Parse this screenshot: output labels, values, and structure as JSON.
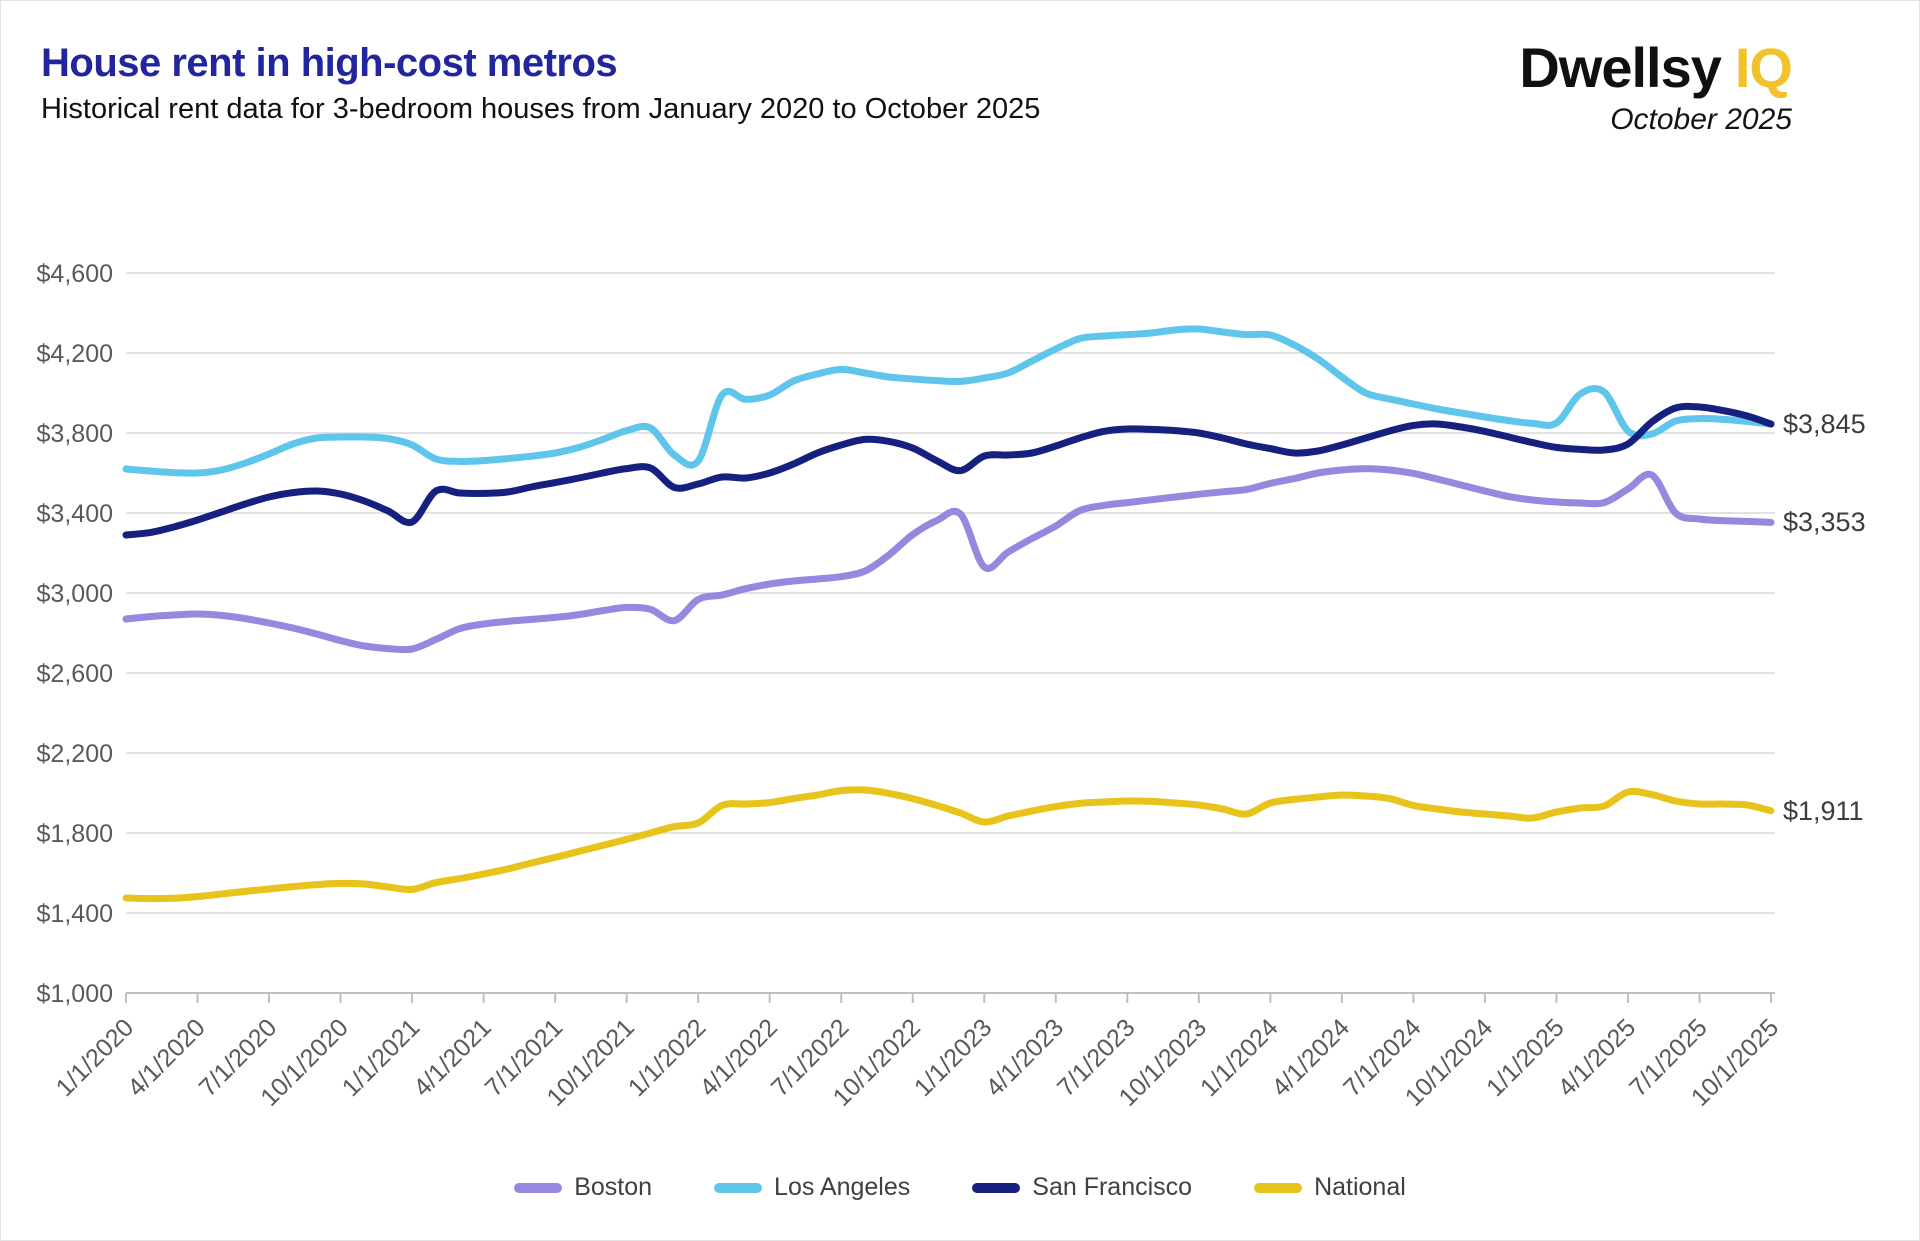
{
  "header": {
    "title": "House rent in high-cost metros",
    "subtitle": "Historical rent data for 3-bedroom houses from January 2020 to October 2025",
    "brand_name": "Dwellsy",
    "brand_suffix": "IQ",
    "date_label": "October 2025"
  },
  "chart_data": {
    "type": "line",
    "title": "House rent in high-cost metros",
    "x_start": "1/1/2020",
    "x_step": "monthly",
    "x_tick_every": 3,
    "categories": [
      "1/1/2020",
      "4/1/2020",
      "7/1/2020",
      "10/1/2020",
      "1/1/2021",
      "4/1/2021",
      "7/1/2021",
      "10/1/2021",
      "1/1/2022",
      "4/1/2022",
      "7/1/2022",
      "10/1/2022",
      "1/1/2023",
      "4/1/2023",
      "7/1/2023",
      "10/1/2023",
      "1/1/2024",
      "4/1/2024",
      "7/1/2024",
      "10/1/2024",
      "1/1/2025",
      "4/1/2025",
      "7/1/2025",
      "10/1/2025"
    ],
    "ylim": [
      1000,
      4600
    ],
    "yticks": [
      {
        "label": "$4,600",
        "value": 4600
      },
      {
        "label": "$4,200",
        "value": 4200
      },
      {
        "label": "$3,800",
        "value": 3800
      },
      {
        "label": "$3,400",
        "value": 3400
      },
      {
        "label": "$3,000",
        "value": 3000
      },
      {
        "label": "$2,600",
        "value": 2600
      },
      {
        "label": "$2,200",
        "value": 2200
      },
      {
        "label": "$1,800",
        "value": 1800
      },
      {
        "label": "$1,400",
        "value": 1400
      },
      {
        "label": "$1,000",
        "value": 1000
      }
    ],
    "grid": true,
    "legend_position": "bottom",
    "series": [
      {
        "name": "National",
        "color": "#E7C31C",
        "values": [
          1475,
          1472,
          1474,
          1482,
          1495,
          1508,
          1520,
          1532,
          1542,
          1548,
          1545,
          1530,
          1518,
          1552,
          1572,
          1595,
          1620,
          1650,
          1678,
          1708,
          1738,
          1768,
          1800,
          1832,
          1850,
          1938,
          1945,
          1952,
          1972,
          1990,
          2012,
          2015,
          1998,
          1972,
          1938,
          1900,
          1855,
          1885,
          1910,
          1932,
          1948,
          1955,
          1960,
          1958,
          1950,
          1940,
          1920,
          1895,
          1950,
          1968,
          1980,
          1990,
          1985,
          1972,
          1938,
          1920,
          1905,
          1895,
          1885,
          1875,
          1905,
          1925,
          1935,
          2005,
          1992,
          1960,
          1945,
          1945,
          1940,
          1911
        ]
      },
      {
        "name": "Boston",
        "color": "#9688DF",
        "values": [
          2870,
          2882,
          2890,
          2895,
          2888,
          2872,
          2850,
          2825,
          2795,
          2762,
          2735,
          2722,
          2720,
          2768,
          2822,
          2845,
          2858,
          2868,
          2878,
          2892,
          2912,
          2928,
          2918,
          2862,
          2968,
          2990,
          3022,
          3045,
          3060,
          3070,
          3082,
          3110,
          3190,
          3292,
          3362,
          3395,
          3130,
          3205,
          3272,
          3335,
          3412,
          3438,
          3452,
          3466,
          3480,
          3494,
          3506,
          3518,
          3548,
          3572,
          3600,
          3615,
          3622,
          3615,
          3598,
          3570,
          3540,
          3510,
          3482,
          3465,
          3455,
          3450,
          3452,
          3520,
          3590,
          3400,
          3370,
          3362,
          3358,
          3353
        ]
      },
      {
        "name": "Los Angeles",
        "color": "#5FC5EA",
        "values": [
          3620,
          3610,
          3602,
          3600,
          3615,
          3650,
          3695,
          3745,
          3775,
          3780,
          3780,
          3772,
          3740,
          3670,
          3658,
          3662,
          3672,
          3684,
          3700,
          3728,
          3768,
          3812,
          3825,
          3690,
          3660,
          3990,
          3968,
          3990,
          4060,
          4095,
          4118,
          4100,
          4080,
          4070,
          4062,
          4058,
          4075,
          4100,
          4160,
          4220,
          4272,
          4285,
          4292,
          4300,
          4315,
          4320,
          4305,
          4292,
          4290,
          4240,
          4170,
          4080,
          4000,
          3970,
          3945,
          3920,
          3900,
          3880,
          3862,
          3848,
          3850,
          3995,
          4005,
          3810,
          3795,
          3860,
          3872,
          3868,
          3858,
          3845
        ]
      },
      {
        "name": "San Francisco",
        "color": "#16207F",
        "values": [
          3290,
          3302,
          3330,
          3365,
          3405,
          3445,
          3480,
          3502,
          3510,
          3495,
          3460,
          3410,
          3355,
          3510,
          3500,
          3498,
          3505,
          3530,
          3552,
          3575,
          3600,
          3622,
          3625,
          3528,
          3545,
          3580,
          3575,
          3600,
          3645,
          3700,
          3740,
          3768,
          3758,
          3725,
          3662,
          3612,
          3685,
          3690,
          3700,
          3735,
          3775,
          3808,
          3820,
          3818,
          3812,
          3800,
          3775,
          3745,
          3722,
          3700,
          3710,
          3740,
          3775,
          3810,
          3838,
          3845,
          3830,
          3808,
          3780,
          3752,
          3728,
          3718,
          3715,
          3745,
          3855,
          3925,
          3930,
          3912,
          3885,
          3845
        ]
      }
    ],
    "legend_order": [
      "Boston",
      "Los Angeles",
      "San Francisco",
      "National"
    ],
    "end_labels": [
      {
        "text": "$3,845",
        "value": 3845
      },
      {
        "text": "$3,353",
        "value": 3353
      },
      {
        "text": "$1,911",
        "value": 1911
      }
    ]
  }
}
